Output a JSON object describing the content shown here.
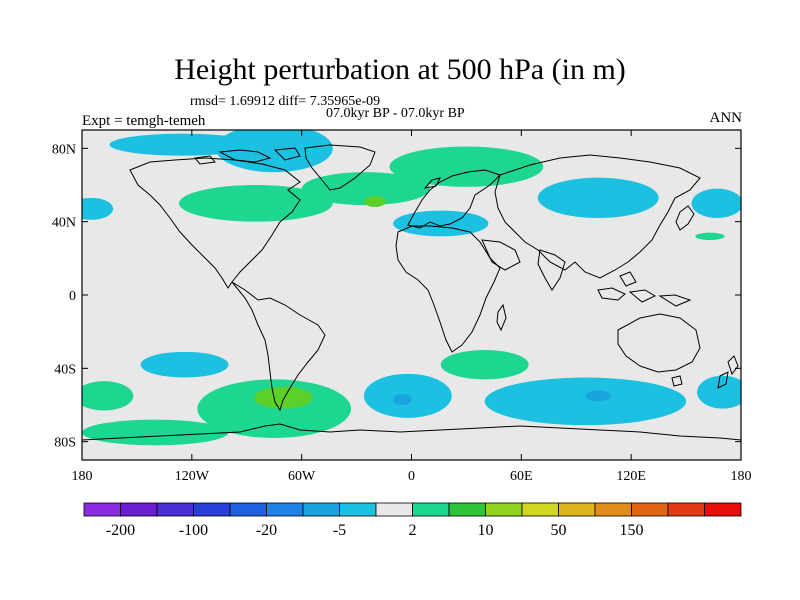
{
  "title": "Height perturbation at 500 hPa (in m)",
  "stats": "rmsd= 1.69912 diff= 7.35965e-09",
  "period": "07.0kyr BP - 07.0kyr BP",
  "expt": "Expt = temgh-temeh",
  "season": "ANN",
  "axes": {
    "x_ticks": [
      {
        "value": -180,
        "label": "180"
      },
      {
        "value": -120,
        "label": "120W"
      },
      {
        "value": -60,
        "label": "60W"
      },
      {
        "value": 0,
        "label": "0"
      },
      {
        "value": 60,
        "label": "60E"
      },
      {
        "value": 120,
        "label": "120E"
      },
      {
        "value": 180,
        "label": "180"
      }
    ],
    "y_ticks": [
      {
        "value": 80,
        "label": "80N"
      },
      {
        "value": 40,
        "label": "40N"
      },
      {
        "value": 0,
        "label": "0"
      },
      {
        "value": -40,
        "label": "40S"
      },
      {
        "value": -80,
        "label": "80S"
      }
    ],
    "lon_range": [
      -180,
      180
    ],
    "lat_range": [
      -90,
      90
    ]
  },
  "colorbar": {
    "colors": [
      "#8a2be2",
      "#6a1fd0",
      "#4b2ed6",
      "#2a3fd8",
      "#1f5fe0",
      "#1d83e6",
      "#19a4e0",
      "#1cc0e0",
      "#e8e8e8",
      "#1dd68f",
      "#2ec43a",
      "#8fd320",
      "#cfd81e",
      "#e0b41c",
      "#e08c18",
      "#e06414",
      "#e23a12",
      "#e80c0c"
    ],
    "labels": [
      {
        "boundary": 1,
        "text": "-200"
      },
      {
        "boundary": 3,
        "text": "-100"
      },
      {
        "boundary": 5,
        "text": "-20"
      },
      {
        "boundary": 7,
        "text": "-5"
      },
      {
        "boundary": 9,
        "text": "2"
      },
      {
        "boundary": 11,
        "text": "10"
      },
      {
        "boundary": 13,
        "text": "50"
      },
      {
        "boundary": 15,
        "text": "150"
      }
    ]
  },
  "field_blobs": [
    {
      "type": "negative",
      "level": 1,
      "cx": -125,
      "cy": 82,
      "rx": 40,
      "ry": 6
    },
    {
      "type": "negative",
      "level": 1,
      "cx": -75,
      "cy": 80,
      "rx": 32,
      "ry": 13
    },
    {
      "type": "negative",
      "level": 1,
      "cx": -175,
      "cy": 47,
      "rx": 12,
      "ry": 6
    },
    {
      "type": "negative",
      "level": 1,
      "cx": 102,
      "cy": 53,
      "rx": 33,
      "ry": 11
    },
    {
      "type": "negative",
      "level": 1,
      "cx": 167,
      "cy": 50,
      "rx": 14,
      "ry": 8
    },
    {
      "type": "negative",
      "level": 1,
      "cx": 16,
      "cy": 39,
      "rx": 26,
      "ry": 7
    },
    {
      "type": "negative",
      "level": 1,
      "cx": -124,
      "cy": -38,
      "rx": 24,
      "ry": 7
    },
    {
      "type": "negative",
      "level": 1,
      "cx": -2,
      "cy": -55,
      "rx": 24,
      "ry": 12
    },
    {
      "type": "negative",
      "level": 1,
      "cx": 95,
      "cy": -58,
      "rx": 55,
      "ry": 13
    },
    {
      "type": "negative",
      "level": 1,
      "cx": 170,
      "cy": -53,
      "rx": 14,
      "ry": 9
    },
    {
      "type": "negative",
      "level": 2,
      "cx": -5,
      "cy": -57,
      "rx": 5,
      "ry": 3
    },
    {
      "type": "negative",
      "level": 2,
      "cx": 102,
      "cy": -55,
      "rx": 7,
      "ry": 3
    },
    {
      "type": "positive",
      "level": 1,
      "cx": -85,
      "cy": 50,
      "rx": 42,
      "ry": 10
    },
    {
      "type": "positive",
      "level": 1,
      "cx": -25,
      "cy": 58,
      "rx": 35,
      "ry": 9
    },
    {
      "type": "positive",
      "level": 1,
      "cx": 30,
      "cy": 70,
      "rx": 42,
      "ry": 11
    },
    {
      "type": "positive",
      "level": 1,
      "cx": 163,
      "cy": 32,
      "rx": 8,
      "ry": 2
    },
    {
      "type": "positive",
      "level": 1,
      "cx": -168,
      "cy": -55,
      "rx": 16,
      "ry": 8
    },
    {
      "type": "positive",
      "level": 1,
      "cx": -75,
      "cy": -62,
      "rx": 42,
      "ry": 16
    },
    {
      "type": "positive",
      "level": 1,
      "cx": -140,
      "cy": -75,
      "rx": 40,
      "ry": 7
    },
    {
      "type": "positive",
      "level": 1,
      "cx": 40,
      "cy": -38,
      "rx": 24,
      "ry": 8
    },
    {
      "type": "positive",
      "level": 2,
      "cx": -70,
      "cy": -56,
      "rx": 16,
      "ry": 6
    },
    {
      "type": "positive",
      "level": 2,
      "cx": -20,
      "cy": 51,
      "rx": 6,
      "ry": 3
    }
  ]
}
